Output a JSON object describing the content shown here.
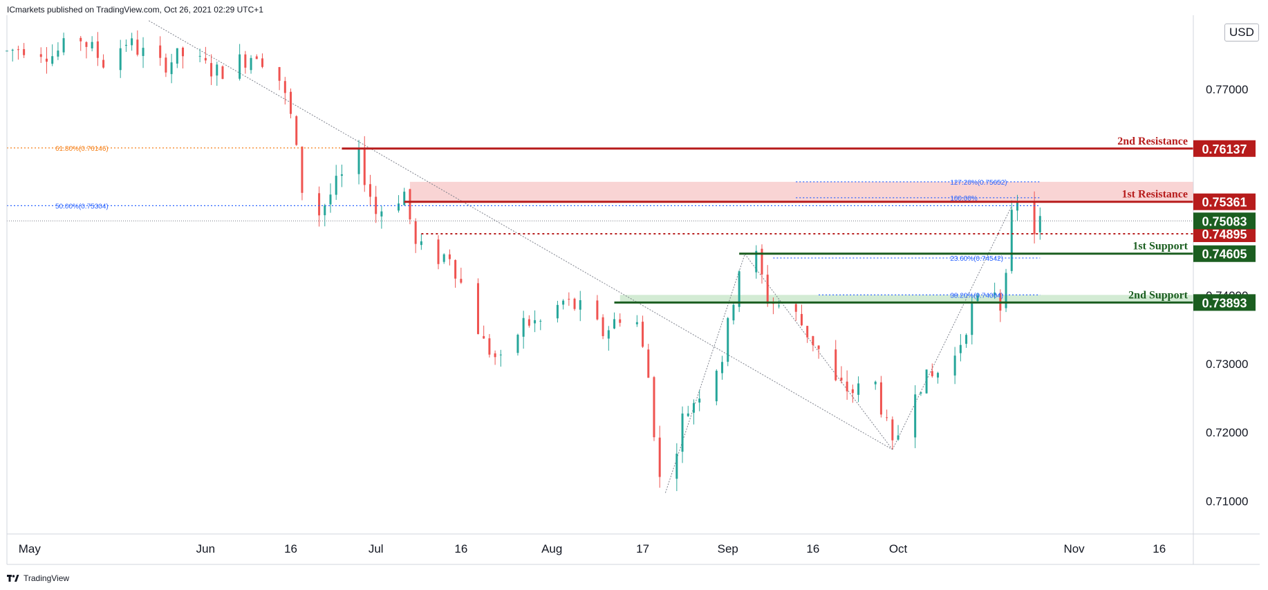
{
  "header": {
    "text": "ICmarkets published on TradingView.com, Oct 26, 2021 02:29 UTC+1"
  },
  "currency": {
    "label": "USD"
  },
  "footer": {
    "brand": "TradingView"
  },
  "colors": {
    "up": "#26a69a",
    "down": "#ef5350",
    "resistance": "#b71c1c",
    "support": "#1b5e20",
    "fib_blue": "#2962ff",
    "fib_orange": "#f57f17",
    "grid": "#e0e3eb",
    "axis_text": "#131722",
    "res_zone": "#f8c9c9",
    "sup_zone": "#c8e6c9"
  },
  "chart_data": {
    "type": "candlestick",
    "symbol_currency": "USD",
    "x_labels": [
      "May",
      "Jun",
      "16",
      "Jul",
      "16",
      "Aug",
      "17",
      "Sep",
      "16",
      "Oct",
      "Nov",
      "16"
    ],
    "y_ticks": [
      0.71,
      0.72,
      0.73,
      0.74,
      0.75,
      0.76,
      0.77,
      0.78
    ],
    "y_tick_labels": [
      "0.71000",
      "0.72000",
      "0.73000",
      "0.74000",
      "",
      "",
      "0.77000",
      ""
    ],
    "ylim": [
      0.7052,
      0.7808
    ],
    "xlim": [
      "2021-04-27",
      "2021-11-22"
    ],
    "price_path": [
      [
        "2021-04-27",
        0.7755
      ],
      [
        "2021-05-01",
        0.7765
      ],
      [
        "2021-05-05",
        0.775
      ],
      [
        "2021-05-10",
        0.7775
      ],
      [
        "2021-05-14",
        0.774
      ],
      [
        "2021-05-18",
        0.777
      ],
      [
        "2021-05-24",
        0.7735
      ],
      [
        "2021-05-28",
        0.775
      ],
      [
        "2021-06-03",
        0.7725
      ],
      [
        "2021-06-08",
        0.7745
      ],
      [
        "2021-06-10",
        0.7755
      ],
      [
        "2021-06-14",
        0.7715
      ],
      [
        "2021-06-16",
        0.766
      ],
      [
        "2021-06-18",
        0.7555
      ],
      [
        "2021-06-21",
        0.752
      ],
      [
        "2021-06-24",
        0.756
      ],
      [
        "2021-06-28",
        0.76
      ],
      [
        "2021-07-01",
        0.752
      ],
      [
        "2021-07-06",
        0.755
      ],
      [
        "2021-07-08",
        0.747
      ],
      [
        "2021-07-12",
        0.7455
      ],
      [
        "2021-07-14",
        0.746
      ],
      [
        "2021-07-20",
        0.733
      ],
      [
        "2021-07-23",
        0.73
      ],
      [
        "2021-07-27",
        0.736
      ],
      [
        "2021-07-30",
        0.736
      ],
      [
        "2021-08-03",
        0.739
      ],
      [
        "2021-08-06",
        0.738
      ],
      [
        "2021-08-10",
        0.7345
      ],
      [
        "2021-08-13",
        0.737
      ],
      [
        "2021-08-16",
        0.736
      ],
      [
        "2021-08-18",
        0.728
      ],
      [
        "2021-08-20",
        0.713
      ],
      [
        "2021-08-21",
        0.7112
      ],
      [
        "2021-08-24",
        0.722
      ],
      [
        "2021-08-27",
        0.726
      ],
      [
        "2021-08-31",
        0.731
      ],
      [
        "2021-09-03",
        0.744
      ],
      [
        "2021-09-06",
        0.7455
      ],
      [
        "2021-09-08",
        0.7395
      ],
      [
        "2021-09-13",
        0.737
      ],
      [
        "2021-09-17",
        0.732
      ],
      [
        "2021-09-20",
        0.727
      ],
      [
        "2021-09-23",
        0.726
      ],
      [
        "2021-09-27",
        0.727
      ],
      [
        "2021-09-30",
        0.7175
      ],
      [
        "2021-10-04",
        0.727
      ],
      [
        "2021-10-07",
        0.728
      ],
      [
        "2021-10-11",
        0.731
      ],
      [
        "2021-10-14",
        0.738
      ],
      [
        "2021-10-18",
        0.741
      ],
      [
        "2021-10-19",
        0.7385
      ],
      [
        "2021-10-21",
        0.751
      ],
      [
        "2021-10-22",
        0.753
      ],
      [
        "2021-10-25",
        0.7495
      ],
      [
        "2021-10-26",
        0.7508
      ]
    ],
    "horizontal_levels": [
      {
        "label": "2nd Resistance",
        "price": 0.76137,
        "price_label": "0.76137",
        "style": "solid",
        "from": "2021-06-25",
        "kind": "resistance"
      },
      {
        "label": "1st Resistance",
        "price": 0.75361,
        "price_label": "0.75361",
        "style": "solid",
        "from": "2021-07-06",
        "kind": "resistance"
      },
      {
        "label": "",
        "price": 0.74895,
        "price_label": "0.74895",
        "style": "dotted",
        "from": "2021-07-09",
        "kind": "resistance"
      },
      {
        "label": "1st Support",
        "price": 0.74605,
        "price_label": "0.74605",
        "style": "solid",
        "from": "2021-09-03",
        "kind": "support"
      },
      {
        "label": "2nd Support",
        "price": 0.73893,
        "price_label": "0.73893",
        "style": "solid",
        "from": "2021-08-12",
        "kind": "support"
      }
    ],
    "current_price": {
      "price": 0.75083,
      "price_label": "0.75083"
    },
    "zones": [
      {
        "kind": "resistance",
        "from": "2021-07-07",
        "top": 0.75652,
        "bottom": 0.75361
      },
      {
        "kind": "support",
        "from": "2021-08-13",
        "top": 0.74004,
        "bottom": 0.73893
      }
    ],
    "fib_labels": [
      {
        "text": "61.80%(0.76146)",
        "price": 0.76146,
        "from": "2021-04-27",
        "to": "2021-06-25",
        "color": "orange"
      },
      {
        "text": "50.00%(0.75304)",
        "price": 0.75304,
        "from": "2021-04-27",
        "to": "2021-10-26",
        "color": "blue"
      },
      {
        "text": "127.20%(0.75652)",
        "price": 0.75652,
        "from": "2021-09-13",
        "to": "2021-10-26",
        "color": "blue"
      },
      {
        "text": "100.00%",
        "price": 0.7542,
        "from": "2021-09-13",
        "to": "2021-10-26",
        "color": "blue"
      },
      {
        "text": "23.60%(0.74542)",
        "price": 0.74542,
        "from": "2021-09-09",
        "to": "2021-10-26",
        "color": "blue"
      },
      {
        "text": "38.20%(0.74004)",
        "price": 0.74004,
        "from": "2021-09-17",
        "to": "2021-10-26",
        "color": "blue"
      }
    ],
    "trend_lines": [
      {
        "from": [
          "2021-05-22",
          0.78
        ],
        "to": [
          "2021-09-30",
          0.7175
        ]
      },
      {
        "from": [
          "2021-08-21",
          0.7112
        ],
        "to": [
          "2021-09-04",
          0.746
        ]
      },
      {
        "from": [
          "2021-09-04",
          0.746
        ],
        "to": [
          "2021-09-30",
          0.7175
        ]
      },
      {
        "from": [
          "2021-09-30",
          0.7175
        ],
        "to": [
          "2021-10-21",
          0.753
        ]
      }
    ]
  }
}
